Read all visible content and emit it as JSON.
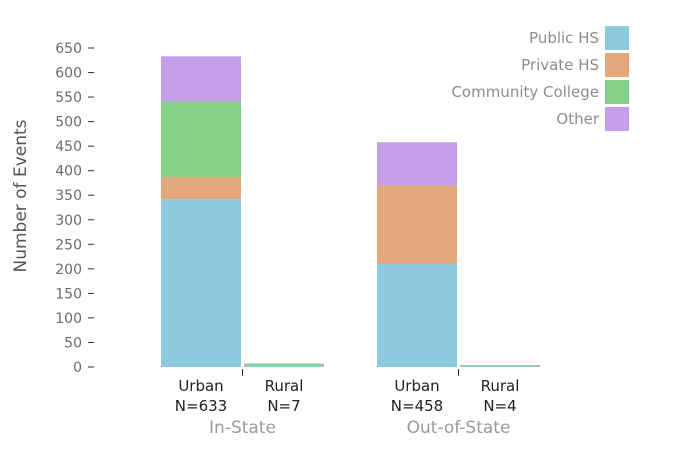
{
  "chart_data": {
    "type": "bar",
    "stacked": true,
    "ylabel": "Number of Events",
    "ylim": [
      0,
      650
    ],
    "yticks": [
      0,
      50,
      100,
      150,
      200,
      250,
      300,
      350,
      400,
      450,
      500,
      550,
      600,
      650
    ],
    "groups": [
      {
        "label": "In-State",
        "categories": [
          {
            "name": "Urban",
            "n_label": "N=633"
          },
          {
            "name": "Rural",
            "n_label": "N=7"
          }
        ]
      },
      {
        "label": "Out-of-State",
        "categories": [
          {
            "name": "Urban",
            "n_label": "N=458"
          },
          {
            "name": "Rural",
            "n_label": "N=4"
          }
        ]
      }
    ],
    "series": [
      {
        "name": "Public HS",
        "color": "#8ecadd",
        "values": [
          342,
          3,
          210,
          3
        ]
      },
      {
        "name": "Private HS",
        "color": "#e4a67b",
        "values": [
          45,
          1,
          160,
          1
        ]
      },
      {
        "name": "Community College",
        "color": "#84d088",
        "values": [
          154,
          2,
          0,
          0
        ]
      },
      {
        "name": "Other",
        "color": "#c59ee9",
        "values": [
          92,
          1,
          88,
          0
        ]
      }
    ],
    "legend_position": "top-right",
    "grid": false
  }
}
